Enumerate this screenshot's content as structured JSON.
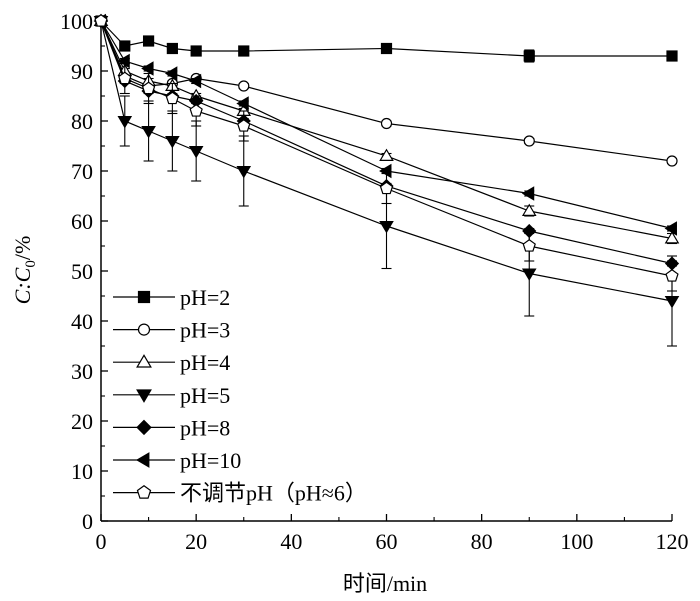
{
  "chart_data": {
    "type": "line",
    "title": "",
    "xlabel": "时间/min",
    "ylabel_parts": [
      "C",
      ":",
      "C",
      "0",
      "/%"
    ],
    "xlim": [
      0,
      120
    ],
    "ylim": [
      0,
      100
    ],
    "xticks": [
      0,
      20,
      40,
      60,
      80,
      100,
      120
    ],
    "yticks": [
      0,
      10,
      20,
      30,
      40,
      50,
      60,
      70,
      80,
      90,
      100
    ],
    "xtick_labels": [
      "0",
      "20",
      "40",
      "60",
      "80",
      "100",
      "120"
    ],
    "ytick_labels": [
      "0",
      "10",
      "20",
      "30",
      "40",
      "50",
      "60",
      "70",
      "80",
      "90",
      "100"
    ],
    "grid": false,
    "legend_position": "lower-left",
    "x": [
      0,
      5,
      10,
      15,
      20,
      30,
      60,
      90,
      120
    ],
    "series": [
      {
        "name": "pH=2",
        "marker": "square-filled",
        "values": [
          100,
          95,
          96,
          94.5,
          94,
          94,
          94.5,
          93,
          93
        ],
        "errors": [
          0,
          0.5,
          0.5,
          0.5,
          0.5,
          0.5,
          0.5,
          1.2,
          0.5
        ]
      },
      {
        "name": "pH=3",
        "marker": "circle-open",
        "values": [
          100,
          89,
          87,
          87.5,
          88.5,
          87,
          79.5,
          76,
          72
        ],
        "errors": [
          0,
          0.5,
          0.5,
          0.5,
          0.5,
          0.5,
          0.5,
          0.5,
          0.5
        ]
      },
      {
        "name": "pH=4",
        "marker": "triangle-up-open",
        "values": [
          100,
          90,
          88,
          87,
          85,
          82,
          73,
          62,
          56.5
        ],
        "errors": [
          0,
          0.5,
          0.5,
          0.5,
          0.5,
          0.5,
          0.5,
          1,
          1
        ]
      },
      {
        "name": "pH=5",
        "marker": "triangle-down-filled",
        "values": [
          100,
          80,
          78,
          76,
          74,
          70,
          59,
          49.5,
          44
        ],
        "errors": [
          0,
          5,
          6,
          6,
          6,
          7,
          8.5,
          8.5,
          9
        ]
      },
      {
        "name": "pH=8",
        "marker": "diamond-filled",
        "values": [
          100,
          88,
          86,
          85,
          84,
          80,
          67,
          58,
          51.5
        ],
        "errors": [
          0,
          0.5,
          0.5,
          0.5,
          0.5,
          0.5,
          0.5,
          0.5,
          0.5
        ]
      },
      {
        "name": "pH=10",
        "marker": "triangle-left-filled",
        "values": [
          100,
          92,
          90.5,
          89.5,
          88,
          83.5,
          70,
          65.5,
          58.5
        ],
        "errors": [
          0,
          0.5,
          0.5,
          0.5,
          0.5,
          0.5,
          0.5,
          0.5,
          0.5
        ]
      },
      {
        "name": "不调节pH（pH≈6）",
        "marker": "pentagon-open",
        "values": [
          100,
          88.5,
          86.5,
          84.5,
          82,
          79,
          66.5,
          55,
          49
        ],
        "errors": [
          0,
          3,
          3,
          3,
          3,
          3,
          3,
          3,
          3
        ]
      }
    ]
  }
}
